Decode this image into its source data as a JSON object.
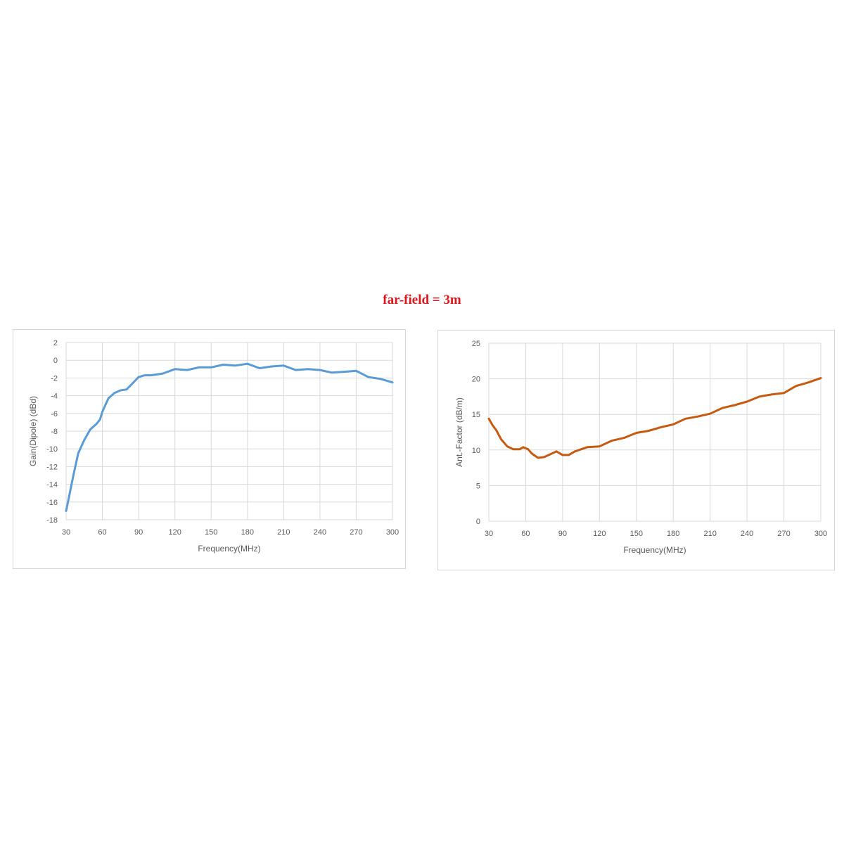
{
  "title": "far-field = 3m",
  "chart_data": [
    {
      "type": "line",
      "xlabel": "Frequency(MHz)",
      "ylabel": "Gain(Dipole) (dBd)",
      "xlim": [
        30,
        300
      ],
      "ylim": [
        -18,
        2
      ],
      "xticks": [
        30,
        60,
        90,
        120,
        150,
        180,
        210,
        240,
        270,
        300
      ],
      "yticks": [
        -18,
        -16,
        -14,
        -12,
        -10,
        -8,
        -6,
        -4,
        -2,
        0,
        2
      ],
      "grid": true,
      "color": "#5b9bd5",
      "x": [
        30,
        33,
        36,
        40,
        45,
        50,
        55,
        58,
        60,
        65,
        70,
        75,
        80,
        85,
        90,
        95,
        100,
        110,
        120,
        130,
        140,
        150,
        160,
        170,
        180,
        190,
        200,
        210,
        220,
        230,
        240,
        250,
        260,
        270,
        280,
        290,
        300
      ],
      "y": [
        -17,
        -15,
        -13,
        -10.5,
        -9,
        -7.8,
        -7.2,
        -6.7,
        -5.8,
        -4.3,
        -3.7,
        -3.4,
        -3.3,
        -2.6,
        -1.9,
        -1.7,
        -1.7,
        -1.5,
        -1.0,
        -1.1,
        -0.8,
        -0.8,
        -0.5,
        -0.6,
        -0.4,
        -0.9,
        -0.7,
        -0.6,
        -1.1,
        -1.0,
        -1.1,
        -1.4,
        -1.3,
        -1.2,
        -1.9,
        -2.1,
        -2.5
      ]
    },
    {
      "type": "line",
      "xlabel": "Frequency(MHz)",
      "ylabel": "Ant.-Factor (dB/m)",
      "xlim": [
        30,
        300
      ],
      "ylim": [
        0,
        25
      ],
      "xticks": [
        30,
        60,
        90,
        120,
        150,
        180,
        210,
        240,
        270,
        300
      ],
      "yticks": [
        0,
        5,
        10,
        15,
        20,
        25
      ],
      "grid": true,
      "color": "#c55a11",
      "x": [
        30,
        33,
        36,
        40,
        45,
        50,
        55,
        58,
        62,
        65,
        70,
        75,
        80,
        85,
        90,
        95,
        100,
        110,
        120,
        130,
        140,
        150,
        160,
        170,
        180,
        190,
        200,
        210,
        220,
        230,
        240,
        250,
        260,
        270,
        280,
        290,
        300
      ],
      "y": [
        14.4,
        13.5,
        12.8,
        11.5,
        10.5,
        10.1,
        10.1,
        10.4,
        10.1,
        9.5,
        8.9,
        9.0,
        9.4,
        9.8,
        9.3,
        9.3,
        9.8,
        10.4,
        10.5,
        11.3,
        11.7,
        12.4,
        12.7,
        13.2,
        13.6,
        14.4,
        14.7,
        15.1,
        15.9,
        16.3,
        16.8,
        17.5,
        17.8,
        18.0,
        19.0,
        19.5,
        20.1
      ]
    }
  ]
}
